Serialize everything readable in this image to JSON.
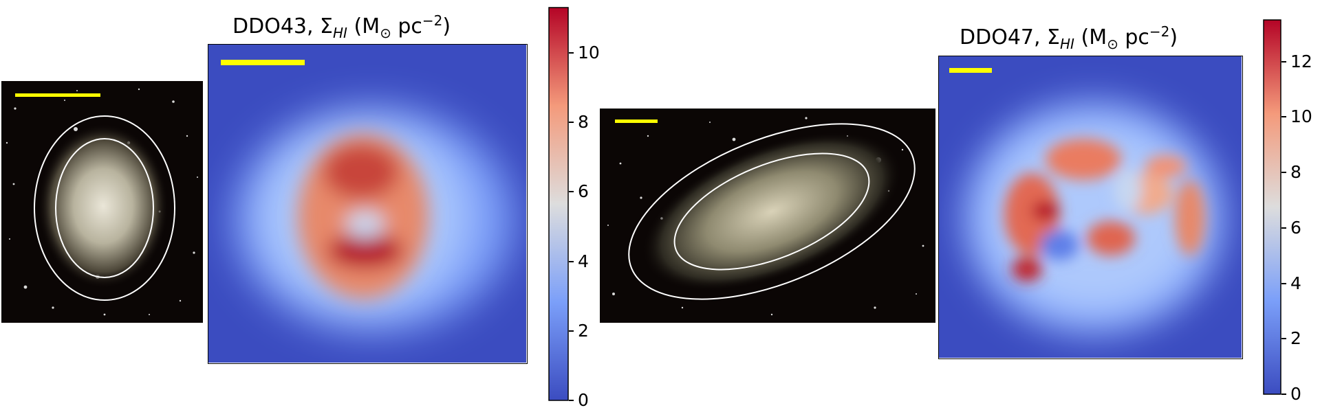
{
  "colors": {
    "low": "#3b4cc0",
    "mid": "#dddddd",
    "high": "#b40426",
    "scalebar": "#ffff00",
    "ellipse": "#ffffff",
    "sky": "#0b0605"
  },
  "chart_data": [
    {
      "type": "heatmap",
      "galaxy": "DDO43",
      "title_prefix": "DDO43, Σ",
      "title_sub": "HI",
      "title_unit_open": " (M",
      "title_unit_sun": "⊙",
      "title_unit_mid": " pc",
      "title_unit_sup": "−2",
      "title_unit_close": ")",
      "colorbar": {
        "cmap": "coolwarm",
        "vmin": 0,
        "vmax": 11.3,
        "ticks": [
          0,
          2,
          4,
          6,
          8,
          10
        ]
      },
      "features": [
        {
          "name": "outer HI envelope",
          "value": 2.5
        },
        {
          "name": "central HI ring",
          "value": 8.5
        },
        {
          "name": "peak north",
          "value": 10.5
        },
        {
          "name": "peak south",
          "value": 10.8
        },
        {
          "name": "central hole",
          "value": 5.0
        }
      ],
      "optical": {
        "ellipses": 2,
        "scalebar": true
      }
    },
    {
      "type": "heatmap",
      "galaxy": "DDO47",
      "title_prefix": "DDO47, Σ",
      "title_sub": "HI",
      "title_unit_open": " (M",
      "title_unit_sun": "⊙",
      "title_unit_mid": " pc",
      "title_unit_sup": "−2",
      "title_unit_close": ")",
      "colorbar": {
        "cmap": "coolwarm",
        "vmin": 0,
        "vmax": 13.5,
        "ticks": [
          0,
          2,
          4,
          6,
          8,
          10,
          12
        ]
      },
      "features": [
        {
          "name": "outer HI envelope",
          "value": 3.5
        },
        {
          "name": "clumpy ring",
          "value": 10.0
        },
        {
          "name": "brightest clump",
          "value": 12.5
        },
        {
          "name": "HI hole",
          "value": 1.5
        }
      ],
      "optical": {
        "ellipses": 2,
        "scalebar": true
      }
    }
  ]
}
